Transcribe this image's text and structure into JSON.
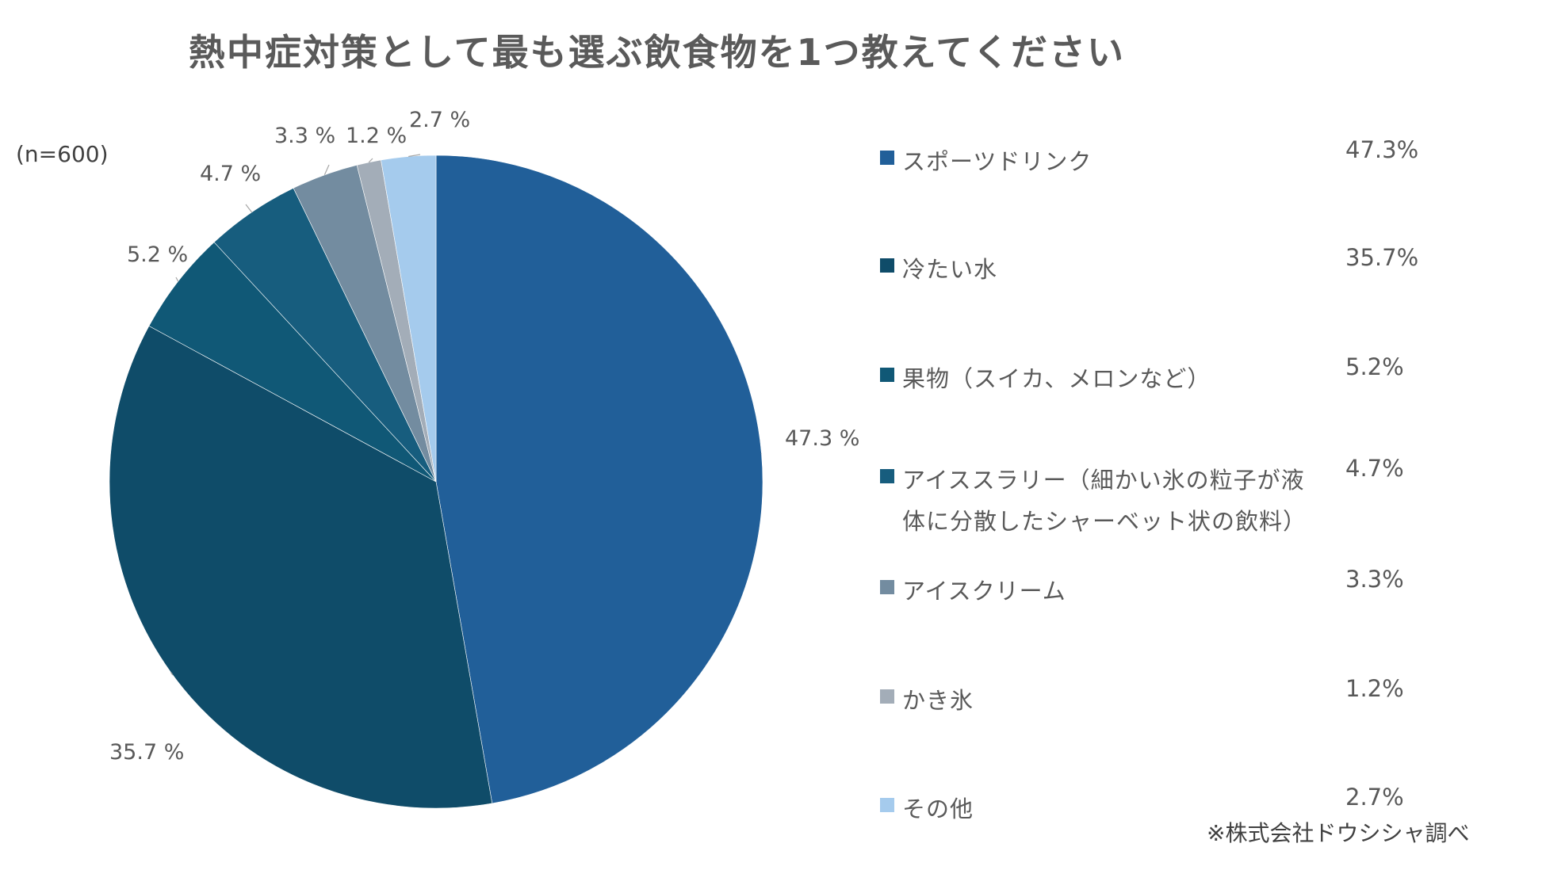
{
  "chart_data": {
    "type": "pie",
    "title": "熱中症対策として最も選ぶ飲食物を1つ教えてください",
    "note": "(n=600)",
    "source": "※株式会社ドウシシャ調べ",
    "categories": [
      "スポーツドリンク",
      "冷たい水",
      "果物（スイカ、メロンなど）",
      "アイススラリー（細かい氷の粒子が液体に分散したシャーベット状の飲料）",
      "アイスクリーム",
      "かき氷",
      "その他"
    ],
    "values": [
      47.3,
      35.7,
      5.2,
      4.7,
      3.3,
      1.2,
      2.7
    ],
    "data_labels": [
      "47.3 %",
      "35.7 %",
      "5.2 %",
      "4.7 %",
      "3.3 %",
      "1.2 %",
      "2.7 %"
    ],
    "legend_values": [
      "47.3%",
      "35.7%",
      "5.2%",
      "4.7%",
      "3.3%",
      "1.2%",
      "2.7%"
    ],
    "colors": [
      "#215f99",
      "#0f4c69",
      "#105876",
      "#175d7e",
      "#738ca0",
      "#a3adb8",
      "#a5cbed"
    ],
    "legend_position": "right",
    "start_angle_deg": 0,
    "direction": "clockwise"
  }
}
